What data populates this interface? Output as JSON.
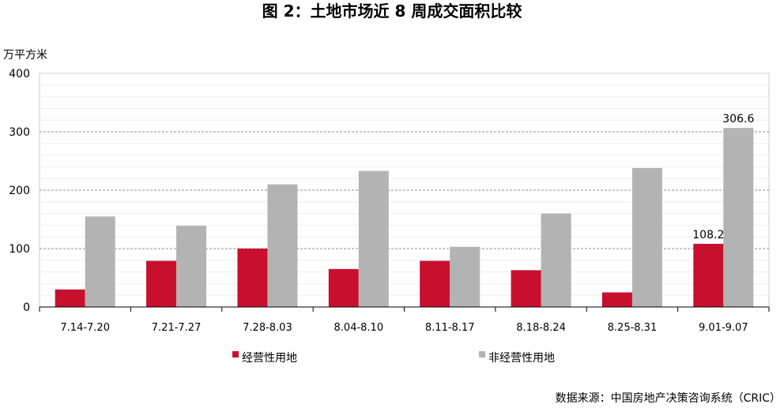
{
  "chart_data": {
    "type": "bar",
    "title": "图 2：土地市场近 8 周成交面积比较",
    "ylabel": "万平方米",
    "xlabel": "",
    "ylim": [
      0,
      400
    ],
    "yticks": [
      0,
      100,
      200,
      300,
      400
    ],
    "grid": true,
    "legend_position": "bottom",
    "categories": [
      "7.14-7.20",
      "7.21-7.27",
      "7.28-8.03",
      "8.04-8.10",
      "8.11-8.17",
      "8.18-8.24",
      "8.25-8.31",
      "9.01-9.07"
    ],
    "series": [
      {
        "name": "经营性用地",
        "color": "#c8102e",
        "values": [
          30,
          79,
          100,
          65,
          79,
          63,
          25,
          108.2
        ]
      },
      {
        "name": "非经营性用地",
        "color": "#b3b3b3",
        "values": [
          155,
          139,
          210,
          233,
          103,
          160,
          238,
          306.6
        ]
      }
    ],
    "data_labels": [
      {
        "series": 0,
        "index": 7,
        "text": "108.2"
      },
      {
        "series": 1,
        "index": 7,
        "text": "306.6"
      }
    ]
  },
  "source": "数据来源：中国房地产决策咨询系统（CRIC）"
}
